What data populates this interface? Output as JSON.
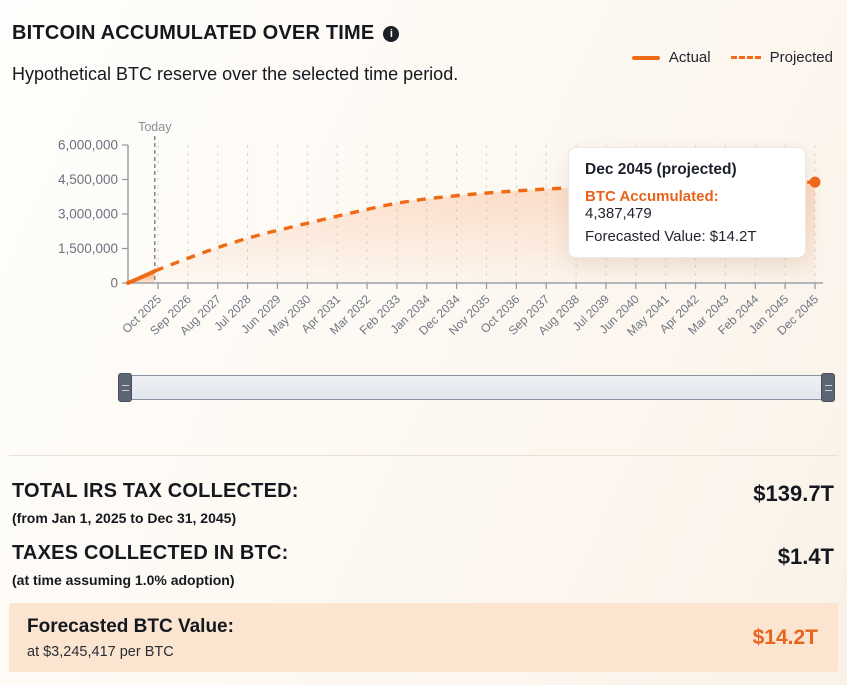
{
  "header": {
    "title": "BITCOIN ACCUMULATED OVER TIME",
    "info_icon": "i",
    "subtitle": "Hypothetical BTC reserve over the selected time period.",
    "legend": [
      {
        "label": "Actual",
        "style": "solid",
        "color": "#ee6b1a"
      },
      {
        "label": "Projected",
        "style": "dashed",
        "color": "#ee6b1a"
      }
    ]
  },
  "chart_data": {
    "type": "area",
    "title": "Hypothetical BTC reserve over the selected time period",
    "xlabel": "",
    "ylabel": "",
    "ylim": [
      0,
      6000000
    ],
    "grid": "vertical-dashed",
    "legend_position": "top-right",
    "y_tick_values": [
      0,
      1500000,
      3000000,
      4500000,
      6000000
    ],
    "y_tick_labels": [
      "0",
      "1,500,000",
      "3,000,000",
      "4,500,000",
      "6,000,000"
    ],
    "x_labels": [
      "Oct 2025",
      "Sep 2026",
      "Aug 2027",
      "Jul 2028",
      "Jun 2029",
      "May 2030",
      "Apr 2031",
      "Mar 2032",
      "Feb 2033",
      "Jan 2034",
      "Dec 2034",
      "Nov 2035",
      "Oct 2036",
      "Sep 2037",
      "Aug 2038",
      "Jul 2039",
      "Jun 2040",
      "May 2041",
      "Apr 2042",
      "Mar 2043",
      "Feb 2044",
      "Jan 2045",
      "Dec 2045"
    ],
    "today_label": "Today",
    "today_t": 0.039,
    "series": [
      {
        "name": "Actual",
        "style": "solid",
        "points": [
          [
            0,
            0
          ],
          [
            0.018,
            230000
          ],
          [
            0.039,
            520000
          ]
        ]
      },
      {
        "name": "Projected",
        "style": "dashed",
        "points": [
          [
            0.039,
            520000
          ],
          [
            0.105,
            1300000
          ],
          [
            0.178,
            2000000
          ],
          [
            0.25,
            2520000
          ],
          [
            0.323,
            3040000
          ],
          [
            0.396,
            3520000
          ],
          [
            0.469,
            3780000
          ],
          [
            0.541,
            3960000
          ],
          [
            0.629,
            4130000
          ],
          [
            0.76,
            4260000
          ],
          [
            0.876,
            4350000
          ],
          [
            1,
            4387479
          ]
        ]
      }
    ],
    "end_point": {
      "t": 1,
      "value": 4387479
    }
  },
  "tooltip": {
    "title": "Dec 2045 (projected)",
    "rows": [
      {
        "label": "BTC Accumulated:",
        "value": "4,387,479"
      },
      {
        "label": "Forecasted Value:",
        "value": "$14.2T"
      }
    ]
  },
  "stats": {
    "rows": [
      {
        "label": "TOTAL IRS TAX COLLECTED:",
        "sublabel": "(from Jan 1, 2025 to Dec 31, 2045)",
        "value": "$139.7T"
      },
      {
        "label": "TAXES COLLECTED IN BTC:",
        "sublabel": "(at time assuming 1.0% adoption)",
        "value": "$1.4T"
      }
    ],
    "highlight": {
      "label": "Forecasted BTC Value:",
      "sublabel": "at $3,245,417 per BTC",
      "value": "$14.2T"
    }
  },
  "colors": {
    "accent_orange": "#ee6b1a",
    "tooltip_label_orange": "#e8631c",
    "highlight_bg": "#fbe5d1",
    "axis_text": "#6b7280",
    "background": "#fcf7f0"
  }
}
